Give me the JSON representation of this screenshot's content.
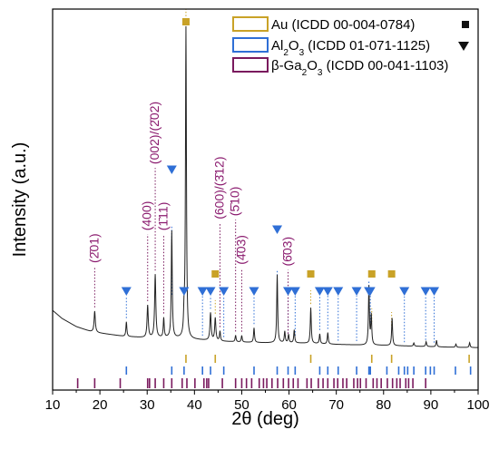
{
  "chart_data": {
    "type": "line",
    "xlabel": "2θ (deg)",
    "ylabel": "Intensity (a.u.)",
    "xlim": [
      10,
      100
    ],
    "xticks": [
      "10",
      "20",
      "30",
      "40",
      "50",
      "60",
      "70",
      "80",
      "90",
      "100"
    ],
    "legend": {
      "position": "top-right",
      "entries": [
        {
          "base": "Au (ICDD 00-004-0784)",
          "sub": "",
          "rest": "",
          "color": "#c9a227",
          "marker": "square",
          "marker_glyph": "■"
        },
        {
          "base": "Al",
          "sub": "2",
          "mid": "O",
          "sub2": "3",
          "rest": " (ICDD 01-071-1125)",
          "color": "#2f6fd6",
          "marker": "triangle-down",
          "marker_glyph": "▼"
        },
        {
          "base": "β-Ga",
          "sub": "2",
          "mid": "O",
          "sub2": "3",
          "rest": " (ICDD 00-041-1103)",
          "color": "#7a1a5e",
          "marker": "none",
          "marker_glyph": ""
        }
      ]
    },
    "annotations": [
      {
        "label": "(2̄01)",
        "x": 18.9,
        "top_y": 0.255
      },
      {
        "label": "(400)",
        "x": 30.1,
        "top_y": 0.355
      },
      {
        "label": "(002)/(2̄02)",
        "x": 31.7,
        "top_y": 0.56
      },
      {
        "label": "(1̄11)",
        "x": 33.5,
        "top_y": 0.355
      },
      {
        "label": "(600)/(3̄12)",
        "x": 45.4,
        "top_y": 0.39
      },
      {
        "label": "(5̄10)",
        "x": 48.7,
        "top_y": 0.4
      },
      {
        "label": "(4̄03)",
        "x": 50.0,
        "top_y": 0.25
      },
      {
        "label": "(6̄03)",
        "x": 59.8,
        "top_y": 0.245
      }
    ],
    "spectrum": {
      "name": "measured",
      "background": [
        [
          10,
          0.12
        ],
        [
          12,
          0.095
        ],
        [
          15,
          0.07
        ],
        [
          18,
          0.055
        ],
        [
          20,
          0.05
        ],
        [
          25,
          0.04
        ],
        [
          30,
          0.035
        ],
        [
          35,
          0.035
        ],
        [
          40,
          0.03
        ],
        [
          45,
          0.025
        ],
        [
          50,
          0.022
        ],
        [
          55,
          0.02
        ],
        [
          60,
          0.02
        ],
        [
          65,
          0.018
        ],
        [
          70,
          0.015
        ],
        [
          75,
          0.013
        ],
        [
          80,
          0.012
        ],
        [
          85,
          0.01
        ],
        [
          90,
          0.008
        ],
        [
          95,
          0.006
        ],
        [
          100,
          0.005
        ]
      ],
      "peaks": [
        {
          "x": 18.9,
          "h": 0.065,
          "w": 0.15
        },
        {
          "x": 25.6,
          "h": 0.045,
          "w": 0.12
        },
        {
          "x": 30.1,
          "h": 0.1,
          "w": 0.15
        },
        {
          "x": 31.7,
          "h": 0.195,
          "w": 0.15
        },
        {
          "x": 33.5,
          "h": 0.06,
          "w": 0.12
        },
        {
          "x": 35.2,
          "h": 0.33,
          "w": 0.12
        },
        {
          "x": 37.8,
          "h": 0.06,
          "w": 0.12
        },
        {
          "x": 38.2,
          "h": 0.96,
          "w": 0.12
        },
        {
          "x": 43.4,
          "h": 0.085,
          "w": 0.15
        },
        {
          "x": 44.4,
          "h": 0.07,
          "w": 0.15
        },
        {
          "x": 45.4,
          "h": 0.03,
          "w": 0.12
        },
        {
          "x": 48.7,
          "h": 0.02,
          "w": 0.12
        },
        {
          "x": 50.0,
          "h": 0.02,
          "w": 0.12
        },
        {
          "x": 52.6,
          "h": 0.045,
          "w": 0.12
        },
        {
          "x": 57.5,
          "h": 0.21,
          "w": 0.12
        },
        {
          "x": 59.1,
          "h": 0.035,
          "w": 0.12
        },
        {
          "x": 59.9,
          "h": 0.025,
          "w": 0.12
        },
        {
          "x": 61.1,
          "h": 0.04,
          "w": 0.12
        },
        {
          "x": 64.6,
          "h": 0.11,
          "w": 0.12
        },
        {
          "x": 66.5,
          "h": 0.03,
          "w": 0.12
        },
        {
          "x": 68.2,
          "h": 0.035,
          "w": 0.12
        },
        {
          "x": 76.9,
          "h": 0.18,
          "w": 0.12
        },
        {
          "x": 77.4,
          "h": 0.09,
          "w": 0.12
        },
        {
          "x": 81.8,
          "h": 0.085,
          "w": 0.12
        },
        {
          "x": 86.4,
          "h": 0.01,
          "w": 0.12
        },
        {
          "x": 89.0,
          "h": 0.015,
          "w": 0.12
        },
        {
          "x": 91.2,
          "h": 0.02,
          "w": 0.12
        },
        {
          "x": 95.3,
          "h": 0.01,
          "w": 0.12
        },
        {
          "x": 98.2,
          "h": 0.015,
          "w": 0.12
        }
      ]
    },
    "peak_markers": {
      "Au": [
        38.2,
        44.4,
        64.6,
        77.5,
        81.7
      ],
      "Al2O3": [
        25.6,
        35.2,
        37.8,
        41.7,
        43.4,
        46.2,
        52.6,
        57.5,
        59.8,
        61.3,
        66.5,
        68.2,
        70.4,
        74.3,
        76.9,
        77.2,
        84.4,
        88.9,
        90.7
      ]
    },
    "reference_sticks": {
      "Au": [
        38.2,
        44.4,
        64.6,
        77.5,
        81.7,
        98.1
      ],
      "Al2O3": [
        25.6,
        35.2,
        37.8,
        41.7,
        43.4,
        46.2,
        52.6,
        57.5,
        59.8,
        61.3,
        66.5,
        68.2,
        70.4,
        74.3,
        76.9,
        77.2,
        80.7,
        83.2,
        84.4,
        85.1,
        86.4,
        88.9,
        89.9,
        90.7,
        95.2,
        98.4
      ],
      "Ga2O3": [
        15.3,
        18.9,
        24.3,
        30.1,
        30.5,
        31.7,
        33.5,
        35.2,
        37.4,
        38.4,
        40.1,
        42.0,
        42.6,
        43.0,
        45.9,
        48.7,
        50.0,
        51.0,
        52.1,
        53.7,
        54.6,
        55.3,
        56.4,
        57.6,
        58.8,
        59.9,
        60.9,
        61.9,
        63.8,
        64.7,
        66.2,
        67.2,
        68.2,
        69.5,
        70.3,
        71.4,
        72.2,
        73.7,
        74.5,
        75.1,
        76.3,
        77.8,
        78.6,
        79.5,
        80.8,
        81.9,
        82.8,
        83.5,
        84.7,
        85.3,
        86.2,
        88.9
      ]
    }
  }
}
